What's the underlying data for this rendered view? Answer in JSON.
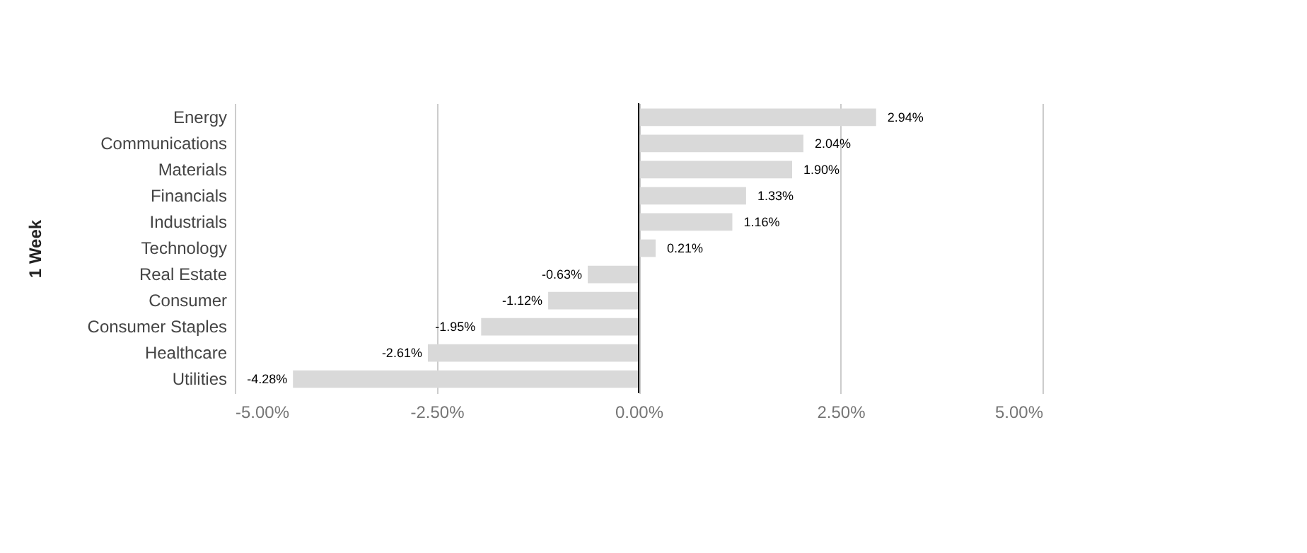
{
  "chart_data": {
    "type": "bar",
    "orientation": "horizontal",
    "ylabel": "1 Week",
    "categories": [
      "Energy",
      "Communications",
      "Materials",
      "Financials",
      "Industrials",
      "Technology",
      "Real Estate",
      "Consumer",
      "Consumer Staples",
      "Healthcare",
      "Utilities"
    ],
    "values": [
      2.94,
      2.04,
      1.9,
      1.33,
      1.16,
      0.21,
      -0.63,
      -1.12,
      -1.95,
      -2.61,
      -4.28
    ],
    "value_labels": [
      "2.94%",
      "2.04%",
      "1.90%",
      "1.33%",
      "1.16%",
      "0.21%",
      "-0.63%",
      "-1.12%",
      "-1.95%",
      "-2.61%",
      "-4.28%"
    ],
    "color": "#d9d9d9",
    "xlim": [
      -5,
      5
    ],
    "xticks": [
      {
        "value": -5,
        "label": "-5.00%"
      },
      {
        "value": -2.5,
        "label": "-2.50%"
      },
      {
        "value": 0,
        "label": "0.00%"
      },
      {
        "value": 2.5,
        "label": "2.50%"
      },
      {
        "value": 5,
        "label": "5.00%"
      }
    ],
    "ref_lines": [
      {
        "axis": "x",
        "value": 0,
        "color": "#000000"
      }
    ],
    "grid": "x"
  }
}
